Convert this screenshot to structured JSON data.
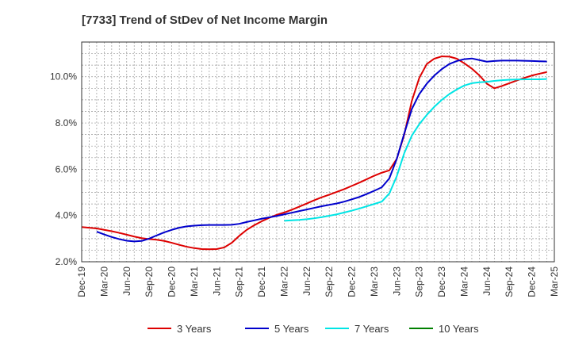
{
  "chart_data": {
    "type": "line",
    "title": "[7733]  Trend of StDev of Net Income Margin",
    "xlabel": "",
    "ylabel": "",
    "x_ticks": [
      "Dec-19",
      "Mar-20",
      "Jun-20",
      "Sep-20",
      "Dec-20",
      "Mar-21",
      "Jun-21",
      "Sep-21",
      "Dec-21",
      "Mar-22",
      "Jun-22",
      "Sep-22",
      "Dec-22",
      "Mar-23",
      "Jun-23",
      "Sep-23",
      "Dec-23",
      "Mar-24",
      "Jun-24",
      "Sep-24",
      "Dec-24",
      "Mar-25"
    ],
    "y_ticks": [
      "2.0%",
      "4.0%",
      "6.0%",
      "8.0%",
      "10.0%"
    ],
    "y_tick_values": [
      2,
      4,
      6,
      8,
      10
    ],
    "ylim": [
      2.0,
      11.5
    ],
    "grid": true,
    "legend_position": "bottom",
    "series": [
      {
        "name": "3 Years",
        "color": "#dd0000",
        "values": [
          {
            "x": "Dec-19",
            "y": 3.5
          },
          {
            "x": "Jan-20",
            "y": 3.47
          },
          {
            "x": "Feb-20",
            "y": 3.44
          },
          {
            "x": "Mar-20",
            "y": 3.38
          },
          {
            "x": "Apr-20",
            "y": 3.32
          },
          {
            "x": "May-20",
            "y": 3.25
          },
          {
            "x": "Jun-20",
            "y": 3.17
          },
          {
            "x": "Jul-20",
            "y": 3.09
          },
          {
            "x": "Aug-20",
            "y": 3.02
          },
          {
            "x": "Sep-20",
            "y": 2.98
          },
          {
            "x": "Oct-20",
            "y": 2.95
          },
          {
            "x": "Nov-20",
            "y": 2.9
          },
          {
            "x": "Dec-20",
            "y": 2.82
          },
          {
            "x": "Jan-21",
            "y": 2.73
          },
          {
            "x": "Feb-21",
            "y": 2.65
          },
          {
            "x": "Mar-21",
            "y": 2.59
          },
          {
            "x": "Apr-21",
            "y": 2.55
          },
          {
            "x": "May-21",
            "y": 2.54
          },
          {
            "x": "Jun-21",
            "y": 2.55
          },
          {
            "x": "Jul-21",
            "y": 2.62
          },
          {
            "x": "Aug-21",
            "y": 2.82
          },
          {
            "x": "Sep-21",
            "y": 3.12
          },
          {
            "x": "Oct-21",
            "y": 3.38
          },
          {
            "x": "Nov-21",
            "y": 3.58
          },
          {
            "x": "Dec-21",
            "y": 3.75
          },
          {
            "x": "Jan-22",
            "y": 3.9
          },
          {
            "x": "Feb-22",
            "y": 4.03
          },
          {
            "x": "Mar-22",
            "y": 4.13
          },
          {
            "x": "Apr-22",
            "y": 4.25
          },
          {
            "x": "May-22",
            "y": 4.38
          },
          {
            "x": "Jun-22",
            "y": 4.52
          },
          {
            "x": "Jul-22",
            "y": 4.66
          },
          {
            "x": "Aug-22",
            "y": 4.79
          },
          {
            "x": "Sep-22",
            "y": 4.9
          },
          {
            "x": "Oct-22",
            "y": 5.02
          },
          {
            "x": "Nov-22",
            "y": 5.14
          },
          {
            "x": "Dec-22",
            "y": 5.28
          },
          {
            "x": "Jan-23",
            "y": 5.42
          },
          {
            "x": "Feb-23",
            "y": 5.57
          },
          {
            "x": "Mar-23",
            "y": 5.72
          },
          {
            "x": "Apr-23",
            "y": 5.85
          },
          {
            "x": "May-23",
            "y": 5.95
          },
          {
            "x": "Jun-23",
            "y": 6.45
          },
          {
            "x": "Jul-23",
            "y": 7.5
          },
          {
            "x": "Aug-23",
            "y": 8.95
          },
          {
            "x": "Sep-23",
            "y": 9.95
          },
          {
            "x": "Oct-23",
            "y": 10.55
          },
          {
            "x": "Nov-23",
            "y": 10.78
          },
          {
            "x": "Dec-23",
            "y": 10.88
          },
          {
            "x": "Jan-24",
            "y": 10.87
          },
          {
            "x": "Feb-24",
            "y": 10.78
          },
          {
            "x": "Mar-24",
            "y": 10.58
          },
          {
            "x": "Apr-24",
            "y": 10.35
          },
          {
            "x": "May-24",
            "y": 10.06
          },
          {
            "x": "Jun-24",
            "y": 9.7
          },
          {
            "x": "Jul-24",
            "y": 9.5
          },
          {
            "x": "Aug-24",
            "y": 9.6
          },
          {
            "x": "Sep-24",
            "y": 9.72
          },
          {
            "x": "Oct-24",
            "y": 9.84
          },
          {
            "x": "Nov-24",
            "y": 9.95
          },
          {
            "x": "Dec-24",
            "y": 10.05
          },
          {
            "x": "Jan-25",
            "y": 10.13
          },
          {
            "x": "Feb-25",
            "y": 10.2
          }
        ]
      },
      {
        "name": "5 Years",
        "color": "#0000cc",
        "values": [
          {
            "x": "Feb-20",
            "y": 3.3
          },
          {
            "x": "Mar-20",
            "y": 3.18
          },
          {
            "x": "Apr-20",
            "y": 3.07
          },
          {
            "x": "May-20",
            "y": 2.98
          },
          {
            "x": "Jun-20",
            "y": 2.91
          },
          {
            "x": "Jul-20",
            "y": 2.88
          },
          {
            "x": "Aug-20",
            "y": 2.9
          },
          {
            "x": "Sep-20",
            "y": 3.0
          },
          {
            "x": "Oct-20",
            "y": 3.14
          },
          {
            "x": "Nov-20",
            "y": 3.27
          },
          {
            "x": "Dec-20",
            "y": 3.38
          },
          {
            "x": "Jan-21",
            "y": 3.47
          },
          {
            "x": "Feb-21",
            "y": 3.53
          },
          {
            "x": "Mar-21",
            "y": 3.56
          },
          {
            "x": "Apr-21",
            "y": 3.58
          },
          {
            "x": "May-21",
            "y": 3.59
          },
          {
            "x": "Jun-21",
            "y": 3.59
          },
          {
            "x": "Jul-21",
            "y": 3.59
          },
          {
            "x": "Aug-21",
            "y": 3.6
          },
          {
            "x": "Sep-21",
            "y": 3.64
          },
          {
            "x": "Oct-21",
            "y": 3.72
          },
          {
            "x": "Nov-21",
            "y": 3.79
          },
          {
            "x": "Dec-21",
            "y": 3.86
          },
          {
            "x": "Jan-22",
            "y": 3.92
          },
          {
            "x": "Feb-22",
            "y": 3.98
          },
          {
            "x": "Mar-22",
            "y": 4.05
          },
          {
            "x": "Apr-22",
            "y": 4.12
          },
          {
            "x": "May-22",
            "y": 4.19
          },
          {
            "x": "Jun-22",
            "y": 4.26
          },
          {
            "x": "Jul-22",
            "y": 4.33
          },
          {
            "x": "Aug-22",
            "y": 4.4
          },
          {
            "x": "Sep-22",
            "y": 4.46
          },
          {
            "x": "Oct-22",
            "y": 4.52
          },
          {
            "x": "Nov-22",
            "y": 4.6
          },
          {
            "x": "Dec-22",
            "y": 4.7
          },
          {
            "x": "Jan-23",
            "y": 4.8
          },
          {
            "x": "Feb-23",
            "y": 4.93
          },
          {
            "x": "Mar-23",
            "y": 5.07
          },
          {
            "x": "Apr-23",
            "y": 5.22
          },
          {
            "x": "May-23",
            "y": 5.6
          },
          {
            "x": "Jun-23",
            "y": 6.45
          },
          {
            "x": "Jul-23",
            "y": 7.55
          },
          {
            "x": "Aug-23",
            "y": 8.6
          },
          {
            "x": "Sep-23",
            "y": 9.25
          },
          {
            "x": "Oct-23",
            "y": 9.7
          },
          {
            "x": "Nov-23",
            "y": 10.05
          },
          {
            "x": "Dec-23",
            "y": 10.33
          },
          {
            "x": "Jan-24",
            "y": 10.55
          },
          {
            "x": "Feb-24",
            "y": 10.68
          },
          {
            "x": "Mar-24",
            "y": 10.76
          },
          {
            "x": "Apr-24",
            "y": 10.79
          },
          {
            "x": "May-24",
            "y": 10.72
          },
          {
            "x": "Jun-24",
            "y": 10.65
          },
          {
            "x": "Jul-24",
            "y": 10.68
          },
          {
            "x": "Aug-24",
            "y": 10.7
          },
          {
            "x": "Sep-24",
            "y": 10.7
          },
          {
            "x": "Oct-24",
            "y": 10.7
          },
          {
            "x": "Nov-24",
            "y": 10.69
          },
          {
            "x": "Dec-24",
            "y": 10.68
          },
          {
            "x": "Jan-25",
            "y": 10.67
          },
          {
            "x": "Feb-25",
            "y": 10.66
          }
        ]
      },
      {
        "name": "7 Years",
        "color": "#00e5e5",
        "values": [
          {
            "x": "Mar-22",
            "y": 3.77
          },
          {
            "x": "Apr-22",
            "y": 3.79
          },
          {
            "x": "May-22",
            "y": 3.81
          },
          {
            "x": "Jun-22",
            "y": 3.84
          },
          {
            "x": "Jul-22",
            "y": 3.88
          },
          {
            "x": "Aug-22",
            "y": 3.93
          },
          {
            "x": "Sep-22",
            "y": 3.99
          },
          {
            "x": "Oct-22",
            "y": 4.05
          },
          {
            "x": "Nov-22",
            "y": 4.13
          },
          {
            "x": "Dec-22",
            "y": 4.21
          },
          {
            "x": "Jan-23",
            "y": 4.3
          },
          {
            "x": "Feb-23",
            "y": 4.4
          },
          {
            "x": "Mar-23",
            "y": 4.5
          },
          {
            "x": "Apr-23",
            "y": 4.6
          },
          {
            "x": "May-23",
            "y": 4.95
          },
          {
            "x": "Jun-23",
            "y": 5.7
          },
          {
            "x": "Jul-23",
            "y": 6.7
          },
          {
            "x": "Aug-23",
            "y": 7.45
          },
          {
            "x": "Sep-23",
            "y": 7.95
          },
          {
            "x": "Oct-23",
            "y": 8.35
          },
          {
            "x": "Nov-23",
            "y": 8.7
          },
          {
            "x": "Dec-23",
            "y": 9.0
          },
          {
            "x": "Jan-24",
            "y": 9.25
          },
          {
            "x": "Feb-24",
            "y": 9.45
          },
          {
            "x": "Mar-24",
            "y": 9.62
          },
          {
            "x": "Apr-24",
            "y": 9.72
          },
          {
            "x": "May-24",
            "y": 9.76
          },
          {
            "x": "Jun-24",
            "y": 9.78
          },
          {
            "x": "Jul-24",
            "y": 9.82
          },
          {
            "x": "Aug-24",
            "y": 9.85
          },
          {
            "x": "Sep-24",
            "y": 9.87
          },
          {
            "x": "Oct-24",
            "y": 9.88
          },
          {
            "x": "Nov-24",
            "y": 9.89
          },
          {
            "x": "Dec-24",
            "y": 9.89
          },
          {
            "x": "Jan-25",
            "y": 9.89
          },
          {
            "x": "Feb-25",
            "y": 9.9
          }
        ]
      },
      {
        "name": "10 Years",
        "color": "#008000",
        "values": []
      }
    ]
  }
}
